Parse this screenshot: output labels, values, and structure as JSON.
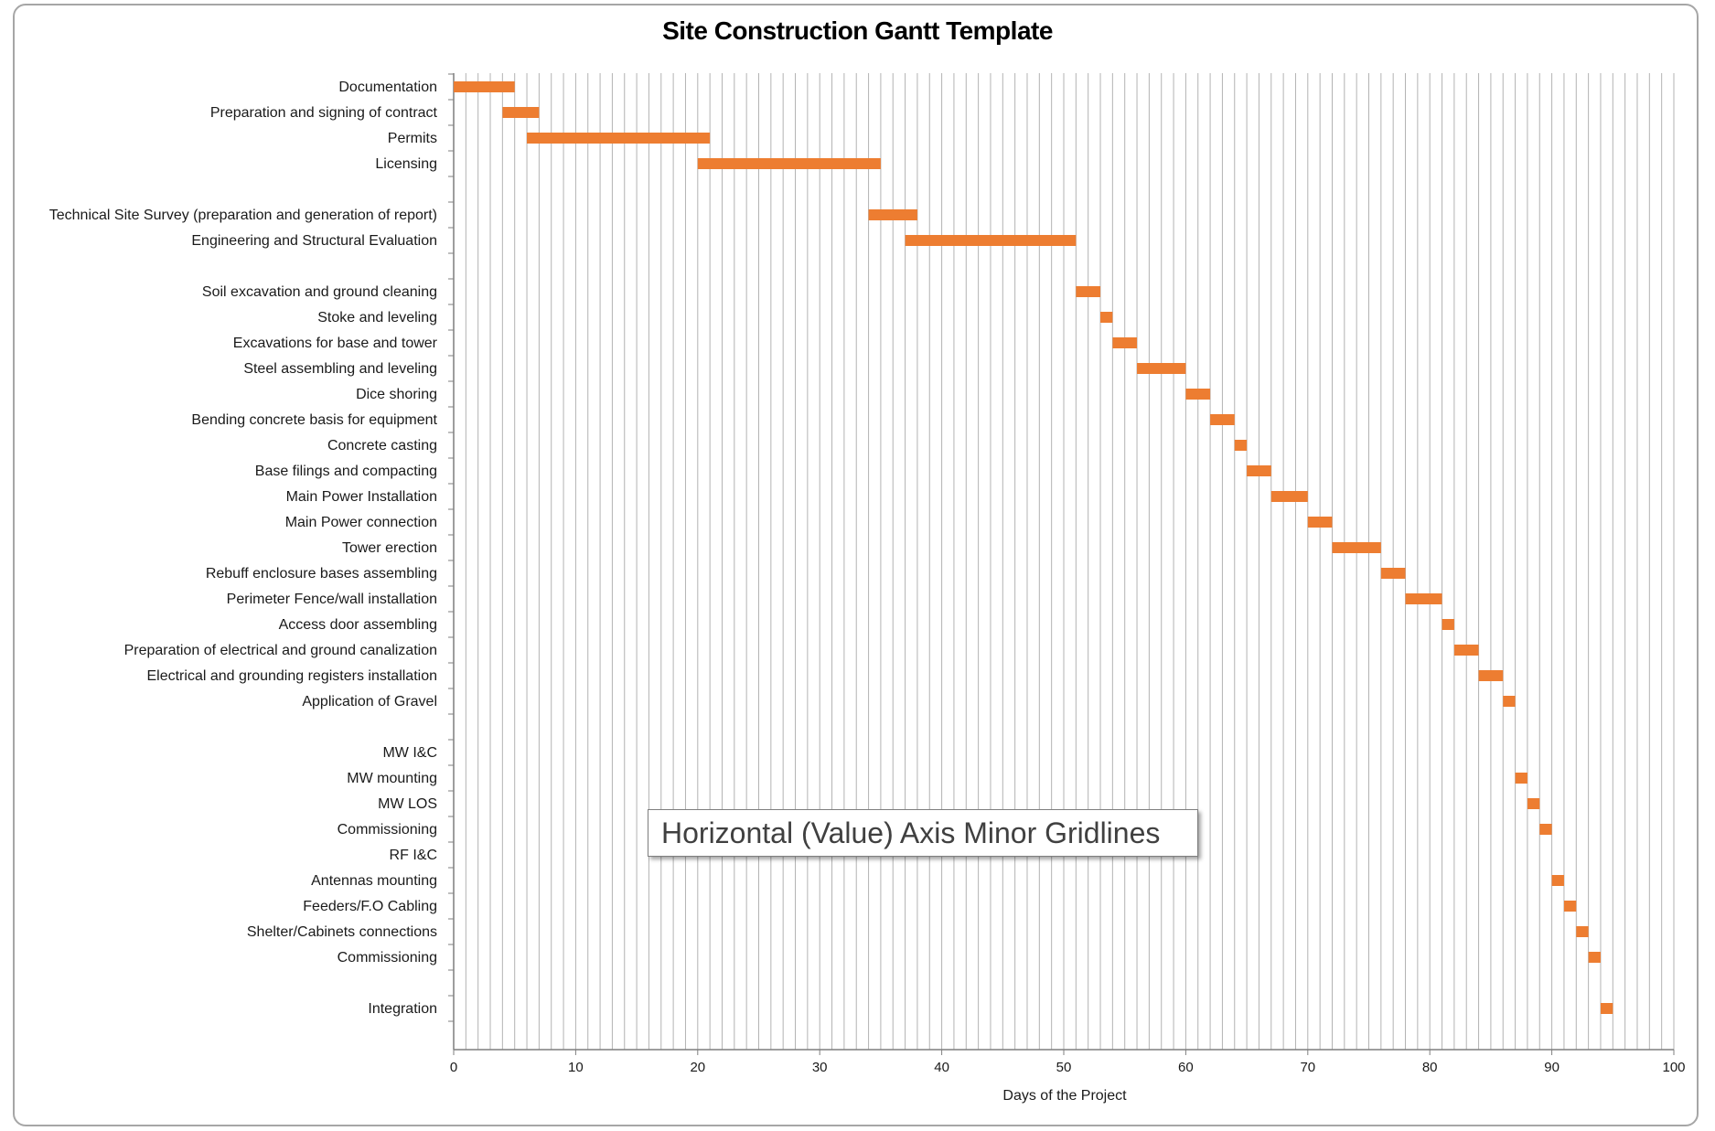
{
  "chart_data": {
    "type": "bar",
    "orientation": "horizontal",
    "stacked_gantt": true,
    "title": "Site Construction Gantt Template",
    "xlabel": "Days of the Project",
    "ylabel": "",
    "xlim": [
      0,
      100
    ],
    "x_major_ticks": [
      0,
      10,
      20,
      30,
      40,
      50,
      60,
      70,
      80,
      90,
      100
    ],
    "x_minor_gridlines_step": 1,
    "grid": true,
    "bar_color": "#ED7D31",
    "gridline_color": "#b3b3b3",
    "tasks": [
      {
        "label": "Documentation",
        "start": 0,
        "duration": 5
      },
      {
        "label": "Preparation and signing of contract",
        "start": 4,
        "duration": 3
      },
      {
        "label": "Permits",
        "start": 6,
        "duration": 15
      },
      {
        "label": "Licensing",
        "start": 20,
        "duration": 15
      },
      {
        "label": "",
        "start": null,
        "duration": null
      },
      {
        "label": "Technical Site Survey (preparation and generation of report)",
        "start": 34,
        "duration": 4
      },
      {
        "label": "Engineering and Structural Evaluation",
        "start": 37,
        "duration": 14
      },
      {
        "label": "",
        "start": null,
        "duration": null
      },
      {
        "label": "Soil excavation and ground cleaning",
        "start": 51,
        "duration": 2
      },
      {
        "label": "Stoke and leveling",
        "start": 53,
        "duration": 1
      },
      {
        "label": "Excavations for base and tower",
        "start": 54,
        "duration": 2
      },
      {
        "label": "Steel assembling and leveling",
        "start": 56,
        "duration": 4
      },
      {
        "label": "Dice shoring",
        "start": 60,
        "duration": 2
      },
      {
        "label": "Bending concrete basis for equipment",
        "start": 62,
        "duration": 2
      },
      {
        "label": "Concrete casting",
        "start": 64,
        "duration": 1
      },
      {
        "label": "Base filings and compacting",
        "start": 65,
        "duration": 2
      },
      {
        "label": "Main Power Installation",
        "start": 67,
        "duration": 3
      },
      {
        "label": "Main Power connection",
        "start": 70,
        "duration": 2
      },
      {
        "label": "Tower erection",
        "start": 72,
        "duration": 4
      },
      {
        "label": "Rebuff enclosure bases assembling",
        "start": 76,
        "duration": 2
      },
      {
        "label": "Perimeter Fence/wall installation",
        "start": 78,
        "duration": 3
      },
      {
        "label": "Access door assembling",
        "start": 81,
        "duration": 1
      },
      {
        "label": "Preparation of electrical and ground canalization",
        "start": 82,
        "duration": 2
      },
      {
        "label": "Electrical and grounding registers installation",
        "start": 84,
        "duration": 2
      },
      {
        "label": "Application of Gravel",
        "start": 86,
        "duration": 1
      },
      {
        "label": "",
        "start": null,
        "duration": null
      },
      {
        "label": "MW I&C",
        "start": null,
        "duration": null
      },
      {
        "label": "MW mounting",
        "start": 87,
        "duration": 1
      },
      {
        "label": "MW LOS",
        "start": 88,
        "duration": 1
      },
      {
        "label": "Commissioning",
        "start": 89,
        "duration": 1
      },
      {
        "label": "RF I&C",
        "start": null,
        "duration": null
      },
      {
        "label": "Antennas mounting",
        "start": 90,
        "duration": 1
      },
      {
        "label": "Feeders/F.O Cabling",
        "start": 91,
        "duration": 1
      },
      {
        "label": "Shelter/Cabinets connections",
        "start": 92,
        "duration": 1
      },
      {
        "label": "Commissioning",
        "start": 93,
        "duration": 1
      },
      {
        "label": "",
        "start": null,
        "duration": null
      },
      {
        "label": "Integration",
        "start": 94,
        "duration": 1
      }
    ]
  },
  "tooltip": {
    "text": "Horizontal (Value) Axis Minor Gridlines"
  }
}
